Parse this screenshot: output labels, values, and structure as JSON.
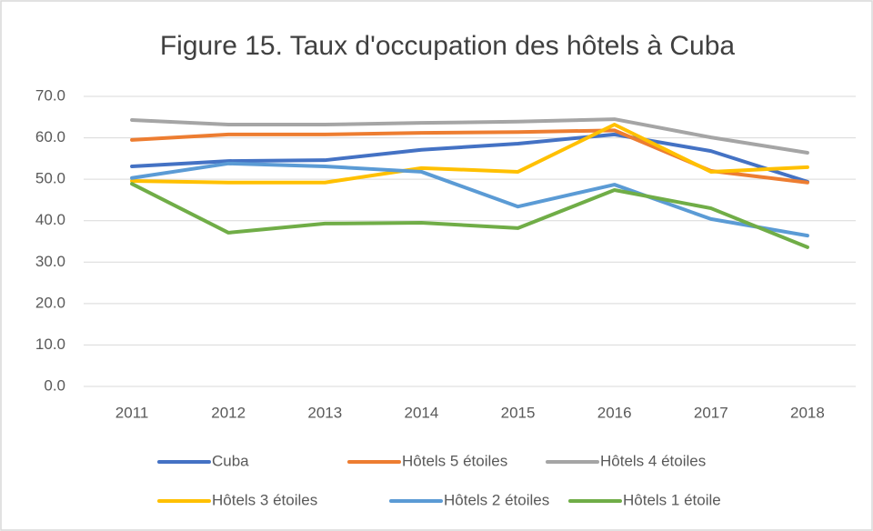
{
  "chart_data": {
    "type": "line",
    "title": "Figure 15. Taux d'occupation des hôtels à Cuba",
    "categories": [
      "2011",
      "2012",
      "2013",
      "2014",
      "2015",
      "2016",
      "2017",
      "2018"
    ],
    "series": [
      {
        "name": "Cuba",
        "color": "#4472c4",
        "values": [
          53.1,
          54.4,
          54.6,
          57.1,
          58.6,
          60.8,
          56.8,
          49.4
        ]
      },
      {
        "name": "Hôtels 5 étoiles",
        "color": "#ed7d31",
        "values": [
          59.5,
          60.8,
          60.8,
          61.2,
          61.4,
          61.8,
          52.0,
          49.2
        ]
      },
      {
        "name": "Hôtels 4 étoiles",
        "color": "#a5a5a5",
        "values": [
          64.3,
          63.2,
          63.2,
          63.6,
          63.9,
          64.5,
          60.1,
          56.4
        ]
      },
      {
        "name": "Hôtels 3 étoiles",
        "color": "#ffc000",
        "values": [
          49.6,
          49.2,
          49.2,
          52.7,
          51.8,
          63.2,
          51.8,
          52.9
        ]
      },
      {
        "name": "Hôtels 2 étoiles",
        "color": "#5b9bd5",
        "values": [
          50.3,
          53.8,
          53.1,
          51.8,
          43.4,
          48.7,
          40.4,
          36.4
        ]
      },
      {
        "name": "Hôtels 1 étoile",
        "color": "#70ad47",
        "values": [
          48.9,
          37.1,
          39.3,
          39.5,
          38.2,
          47.4,
          43.0,
          33.6
        ]
      }
    ],
    "ylim": [
      0,
      70
    ],
    "yticks": [
      {
        "value": 0,
        "label": "0.0"
      },
      {
        "value": 10,
        "label": "10.0"
      },
      {
        "value": 20,
        "label": "20.0"
      },
      {
        "value": 30,
        "label": "30.0"
      },
      {
        "value": 40,
        "label": "40.0"
      },
      {
        "value": 50,
        "label": "50.0"
      },
      {
        "value": 60,
        "label": "60.0"
      },
      {
        "value": 70,
        "label": "70.0"
      }
    ],
    "grid": true,
    "legend": "bottom"
  }
}
